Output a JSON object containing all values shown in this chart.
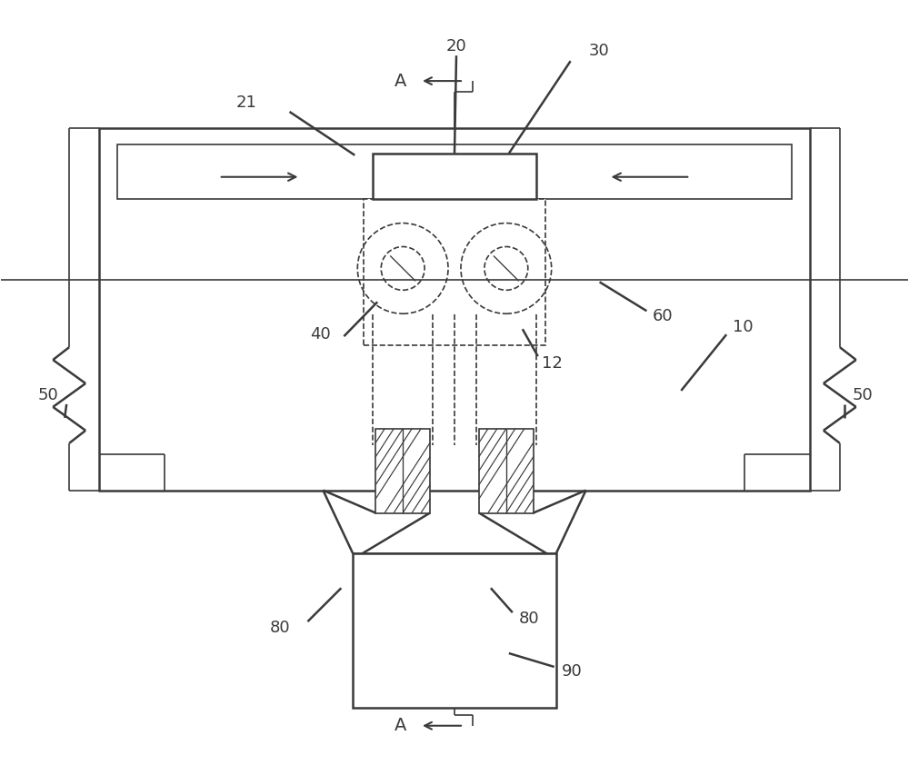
{
  "bg_color": "#ffffff",
  "line_color": "#3a3a3a",
  "lw_main": 1.8,
  "lw_thin": 1.2,
  "fig_width": 10.0,
  "fig_height": 8.42,
  "font_size": 13
}
